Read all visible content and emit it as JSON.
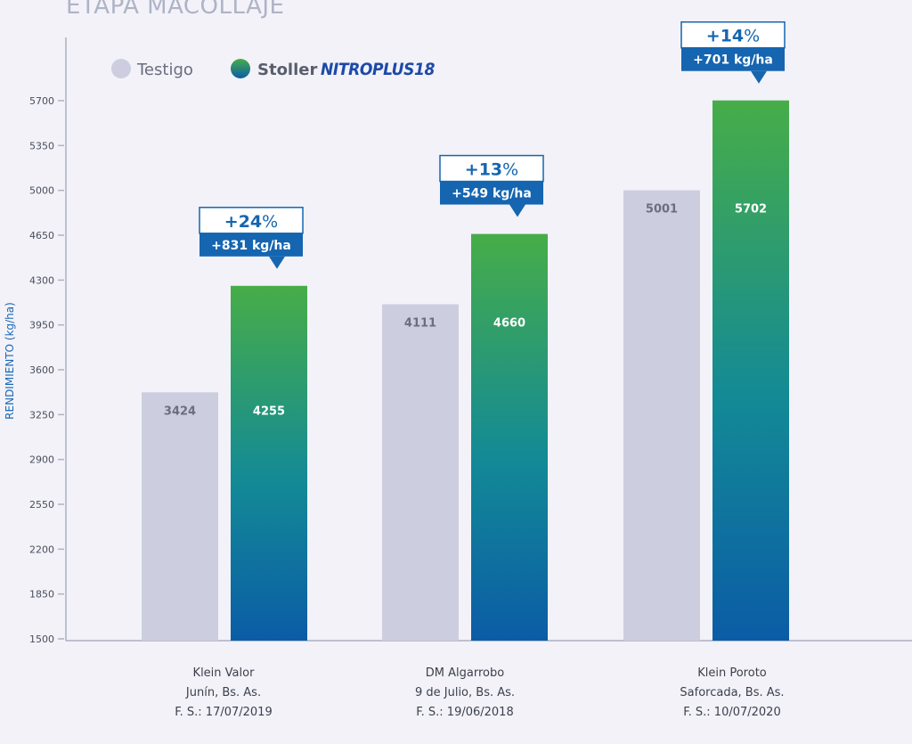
{
  "chart_data": {
    "type": "bar",
    "title": "ETAPA MACOLLAJE",
    "ylabel": "RENDIMIENTO (kg/ha)",
    "xlabel": "",
    "ylim": [
      1500,
      5900
    ],
    "yticks": [
      1500,
      1850,
      2200,
      2550,
      2900,
      3250,
      3600,
      3950,
      4300,
      4650,
      5000,
      5350,
      5700
    ],
    "legend_position": "top-left",
    "brand_label": "NITROPLUS18",
    "categories": [
      [
        "Klein Valor",
        "Junín, Bs. As.",
        "F. S.: 17/07/2019"
      ],
      [
        "DM Algarrobo",
        "9 de Julio, Bs. As.",
        "F. S.: 19/06/2018"
      ],
      [
        "Klein Poroto",
        "Saforcada, Bs. As.",
        "F. S.: 10/07/2020"
      ]
    ],
    "series": [
      {
        "name": "Testigo",
        "values": [
          3424,
          4111,
          5001
        ]
      },
      {
        "name": "Stoller",
        "values": [
          4255,
          4660,
          5702
        ]
      }
    ],
    "annotations": [
      {
        "percent_num": "+24",
        "percent_sign": "%",
        "delta": "+831 kg/ha"
      },
      {
        "percent_num": "+13",
        "percent_sign": "%",
        "delta": "+549 kg/ha"
      },
      {
        "percent_num": "+14",
        "percent_sign": "%",
        "delta": "+701 kg/ha"
      }
    ]
  },
  "colors": {
    "testigo": "#cccedf",
    "green_top": "#47ad48",
    "blue_bottom": "#0b5ca6",
    "annotation_blue": "#1565b0",
    "axis": "#8b8fa3",
    "ylabel": "#1a68b3",
    "brand": "#1d4aa8"
  }
}
